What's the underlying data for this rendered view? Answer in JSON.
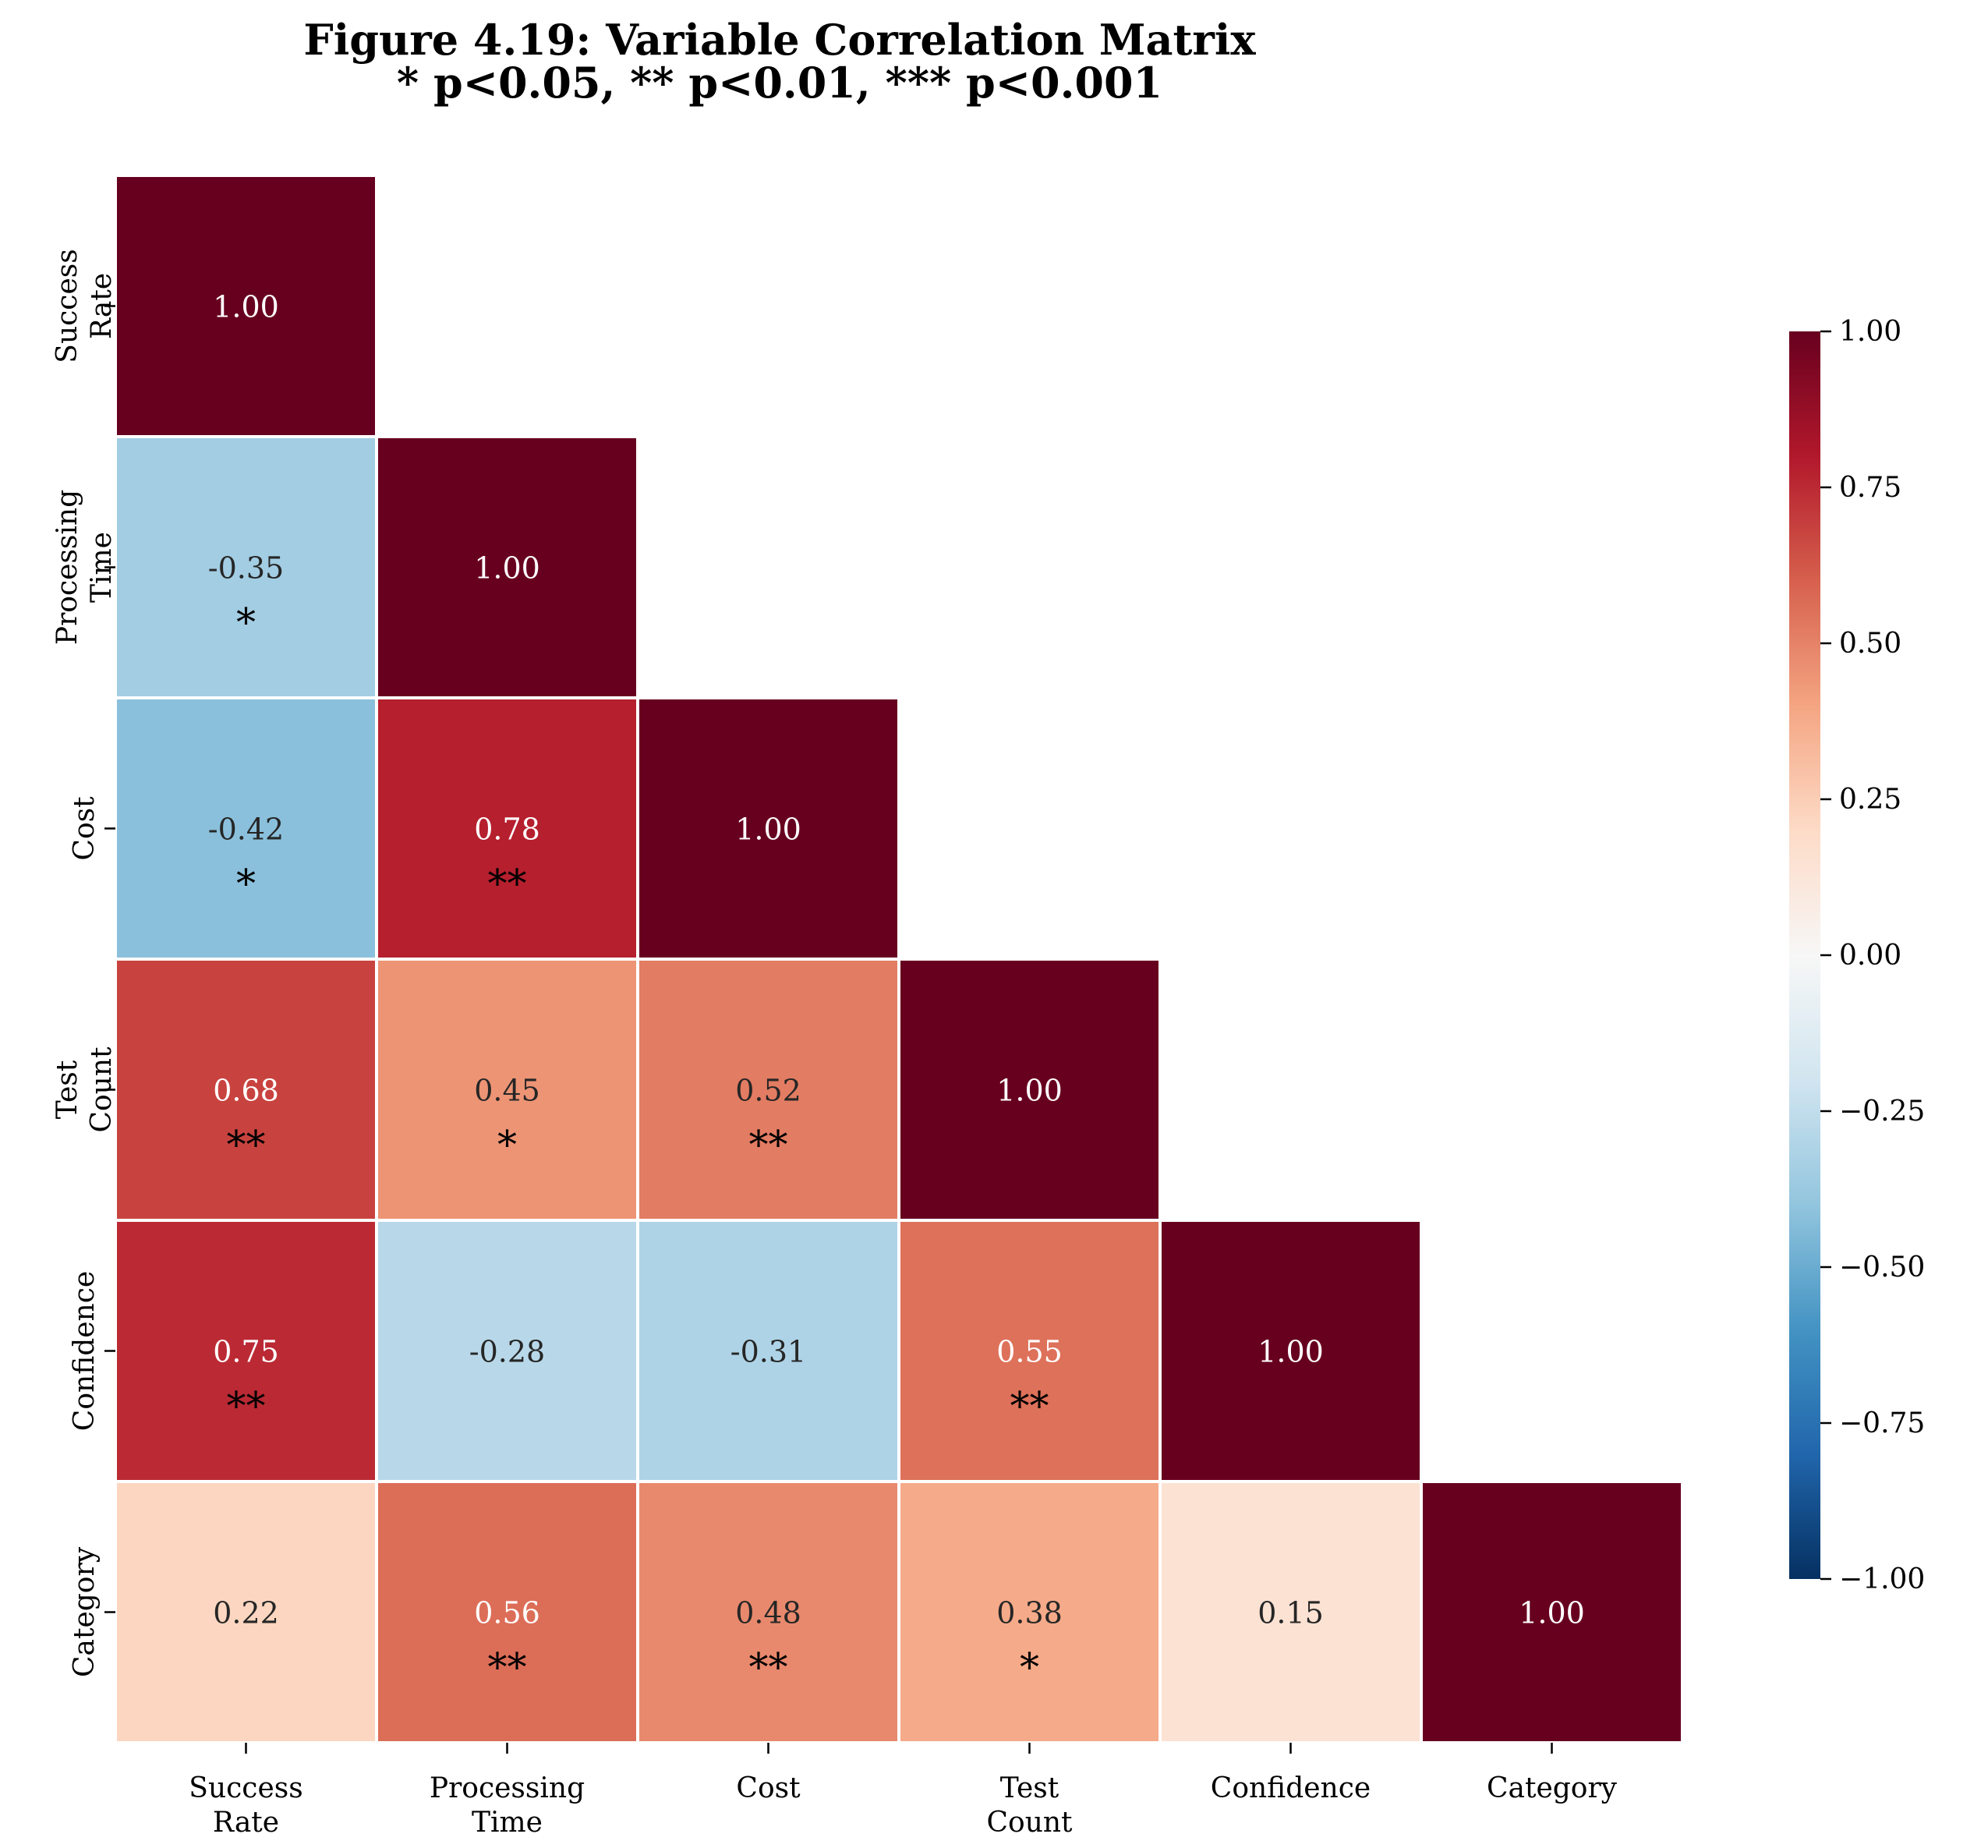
{
  "chart_data": {
    "type": "heatmap",
    "title_lines": [
      "Figure 4.19: Variable Correlation Matrix",
      "* p<0.05, ** p<0.01, *** p<0.001"
    ],
    "variables": [
      "Success\nRate",
      "Processing\nTime",
      "Cost",
      "Test\nCount",
      "Confidence",
      "Category"
    ],
    "mask": "upper-triangle",
    "values": [
      [
        1.0,
        null,
        null,
        null,
        null,
        null
      ],
      [
        -0.35,
        1.0,
        null,
        null,
        null,
        null
      ],
      [
        -0.42,
        0.78,
        1.0,
        null,
        null,
        null
      ],
      [
        0.68,
        0.45,
        0.52,
        1.0,
        null,
        null
      ],
      [
        0.75,
        -0.28,
        -0.31,
        0.55,
        1.0,
        null
      ],
      [
        0.22,
        0.56,
        0.48,
        0.38,
        0.15,
        1.0
      ]
    ],
    "significance": [
      [
        "",
        "",
        "",
        "",
        "",
        ""
      ],
      [
        "*",
        "",
        "",
        "",
        "",
        ""
      ],
      [
        "*",
        "**",
        "",
        "",
        "",
        ""
      ],
      [
        "**",
        "*",
        "**",
        "",
        "",
        ""
      ],
      [
        "**",
        "",
        "",
        "**",
        "",
        ""
      ],
      [
        "",
        "**",
        "**",
        "*",
        "",
        ""
      ]
    ],
    "colorbar": {
      "colormap": "RdBu_r",
      "vmin": -1.0,
      "vmax": 1.0,
      "ticks": [
        "1.00",
        "0.75",
        "0.50",
        "0.25",
        "0.00",
        "−0.25",
        "−0.50",
        "−0.75",
        "−1.00"
      ],
      "tick_values": [
        1.0,
        0.75,
        0.5,
        0.25,
        0.0,
        -0.25,
        -0.5,
        -0.75,
        -1.0
      ],
      "placement": "right"
    },
    "grid": false
  }
}
